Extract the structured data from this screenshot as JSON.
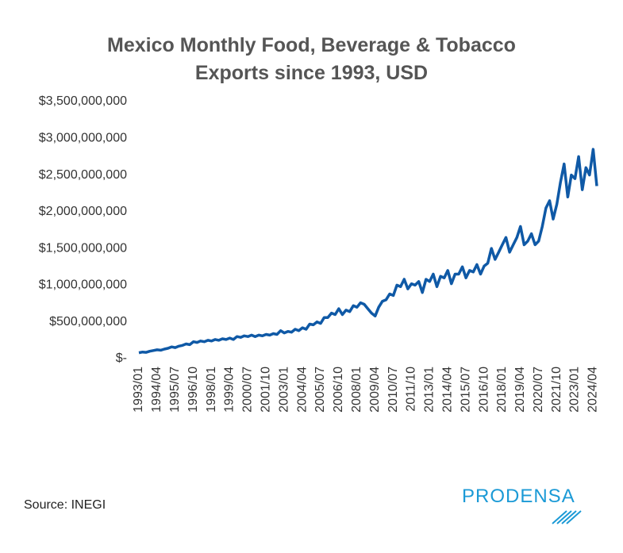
{
  "chart_data": {
    "type": "line",
    "title": "Mexico Monthly Food, Beverage & Tobacco Exports since 1993, USD",
    "source": "Source: INEGI",
    "logo": "PRODENSA",
    "color": "#0f59a6",
    "categories": [
      "1993/01",
      null,
      null,
      null,
      null,
      "1994/04",
      null,
      null,
      null,
      null,
      "1995/07",
      null,
      null,
      null,
      null,
      "1996/10",
      null,
      null,
      null,
      null,
      "1998/01",
      null,
      null,
      null,
      null,
      "1999/04",
      null,
      null,
      null,
      null,
      "2000/07",
      null,
      null,
      null,
      null,
      "2001/10",
      null,
      null,
      null,
      null,
      "2003/01",
      null,
      null,
      null,
      null,
      "2004/04",
      null,
      null,
      null,
      null,
      "2005/07",
      null,
      null,
      null,
      null,
      "2006/10",
      null,
      null,
      null,
      null,
      "2008/01",
      null,
      null,
      null,
      null,
      "2009/04",
      null,
      null,
      null,
      null,
      "2010/07",
      null,
      null,
      null,
      null,
      "2011/10",
      null,
      null,
      null,
      null,
      "2013/01",
      null,
      null,
      null,
      null,
      "2014/04",
      null,
      null,
      null,
      null,
      "2015/07",
      null,
      null,
      null,
      null,
      "2016/10",
      null,
      null,
      null,
      null,
      "2018/01",
      null,
      null,
      null,
      null,
      "2019/04",
      null,
      null,
      null,
      null,
      "2020/07",
      null,
      null,
      null,
      null,
      "2021/10",
      null,
      null,
      null,
      null,
      "2023/01",
      null,
      null,
      null,
      null,
      "2024/04",
      null
    ],
    "values": [
      80000000,
      90000000,
      85000000,
      100000000,
      110000000,
      120000000,
      115000000,
      130000000,
      140000000,
      160000000,
      150000000,
      170000000,
      180000000,
      200000000,
      190000000,
      230000000,
      220000000,
      240000000,
      230000000,
      250000000,
      240000000,
      260000000,
      250000000,
      270000000,
      260000000,
      280000000,
      260000000,
      300000000,
      290000000,
      310000000,
      300000000,
      320000000,
      300000000,
      320000000,
      310000000,
      330000000,
      320000000,
      340000000,
      330000000,
      380000000,
      350000000,
      370000000,
      360000000,
      400000000,
      380000000,
      420000000,
      400000000,
      470000000,
      460000000,
      500000000,
      480000000,
      560000000,
      560000000,
      620000000,
      600000000,
      680000000,
      600000000,
      660000000,
      640000000,
      720000000,
      700000000,
      760000000,
      740000000,
      680000000,
      620000000,
      580000000,
      700000000,
      780000000,
      800000000,
      880000000,
      860000000,
      1000000000,
      980000000,
      1080000000,
      950000000,
      1020000000,
      1000000000,
      1050000000,
      900000000,
      1080000000,
      1050000000,
      1150000000,
      980000000,
      1120000000,
      1100000000,
      1200000000,
      1020000000,
      1150000000,
      1150000000,
      1250000000,
      1100000000,
      1200000000,
      1180000000,
      1280000000,
      1150000000,
      1260000000,
      1300000000,
      1500000000,
      1350000000,
      1450000000,
      1550000000,
      1650000000,
      1450000000,
      1550000000,
      1650000000,
      1800000000,
      1550000000,
      1600000000,
      1700000000,
      1550000000,
      1600000000,
      1800000000,
      2050000000,
      2150000000,
      1900000000,
      2100000000,
      2400000000,
      2650000000,
      2200000000,
      2500000000,
      2450000000,
      2750000000,
      2300000000,
      2600000000,
      2500000000,
      2850000000,
      2350000000
    ],
    "ylim": [
      0,
      3500000000
    ],
    "yticks": [
      {
        "value": 0,
        "label": "$-"
      },
      {
        "value": 500000000,
        "label": "$500,000,000"
      },
      {
        "value": 1000000000,
        "label": "$1,000,000,000"
      },
      {
        "value": 1500000000,
        "label": "$1,500,000,000"
      },
      {
        "value": 2000000000,
        "label": "$2,000,000,000"
      },
      {
        "value": 2500000000,
        "label": "$2,500,000,000"
      },
      {
        "value": 3000000000,
        "label": "$3,000,000,000"
      },
      {
        "value": 3500000000,
        "label": "$3,500,000,000"
      }
    ]
  }
}
